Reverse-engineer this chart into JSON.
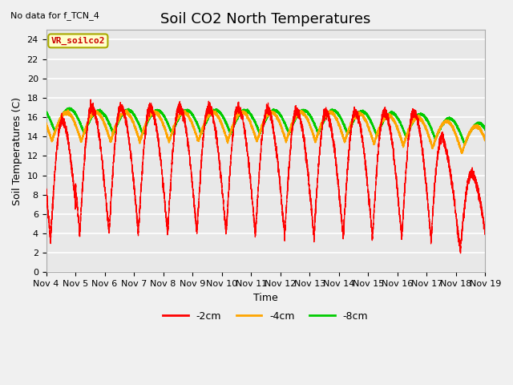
{
  "title": "Soil CO2 North Temperatures",
  "subtitle": "No data for f_TCN_4",
  "ylabel": "Soil Temperatures (C)",
  "xlabel": "Time",
  "ylim": [
    0,
    25
  ],
  "yticks": [
    0,
    2,
    4,
    6,
    8,
    10,
    12,
    14,
    16,
    18,
    20,
    22,
    24
  ],
  "xtick_labels": [
    "Nov 4",
    "Nov 5",
    "Nov 6",
    "Nov 7",
    "Nov 8",
    "Nov 9",
    "Nov 10",
    "Nov 11",
    "Nov 12",
    "Nov 13",
    "Nov 14",
    "Nov 15",
    "Nov 16",
    "Nov 17",
    "Nov 18",
    "Nov 19"
  ],
  "legend_label_2cm": "-2cm",
  "legend_label_4cm": "-4cm",
  "legend_label_8cm": "-8cm",
  "color_2cm": "#FF0000",
  "color_4cm": "#FFA500",
  "color_8cm": "#00CC00",
  "legend_box_color": "#FFFFCC",
  "legend_box_edge": "#AAAA00",
  "legend_text": "VR_soilco2",
  "bg_color": "#E8E8E8",
  "grid_color": "#FFFFFF",
  "title_fontsize": 13,
  "axis_label_fontsize": 9,
  "tick_fontsize": 8
}
